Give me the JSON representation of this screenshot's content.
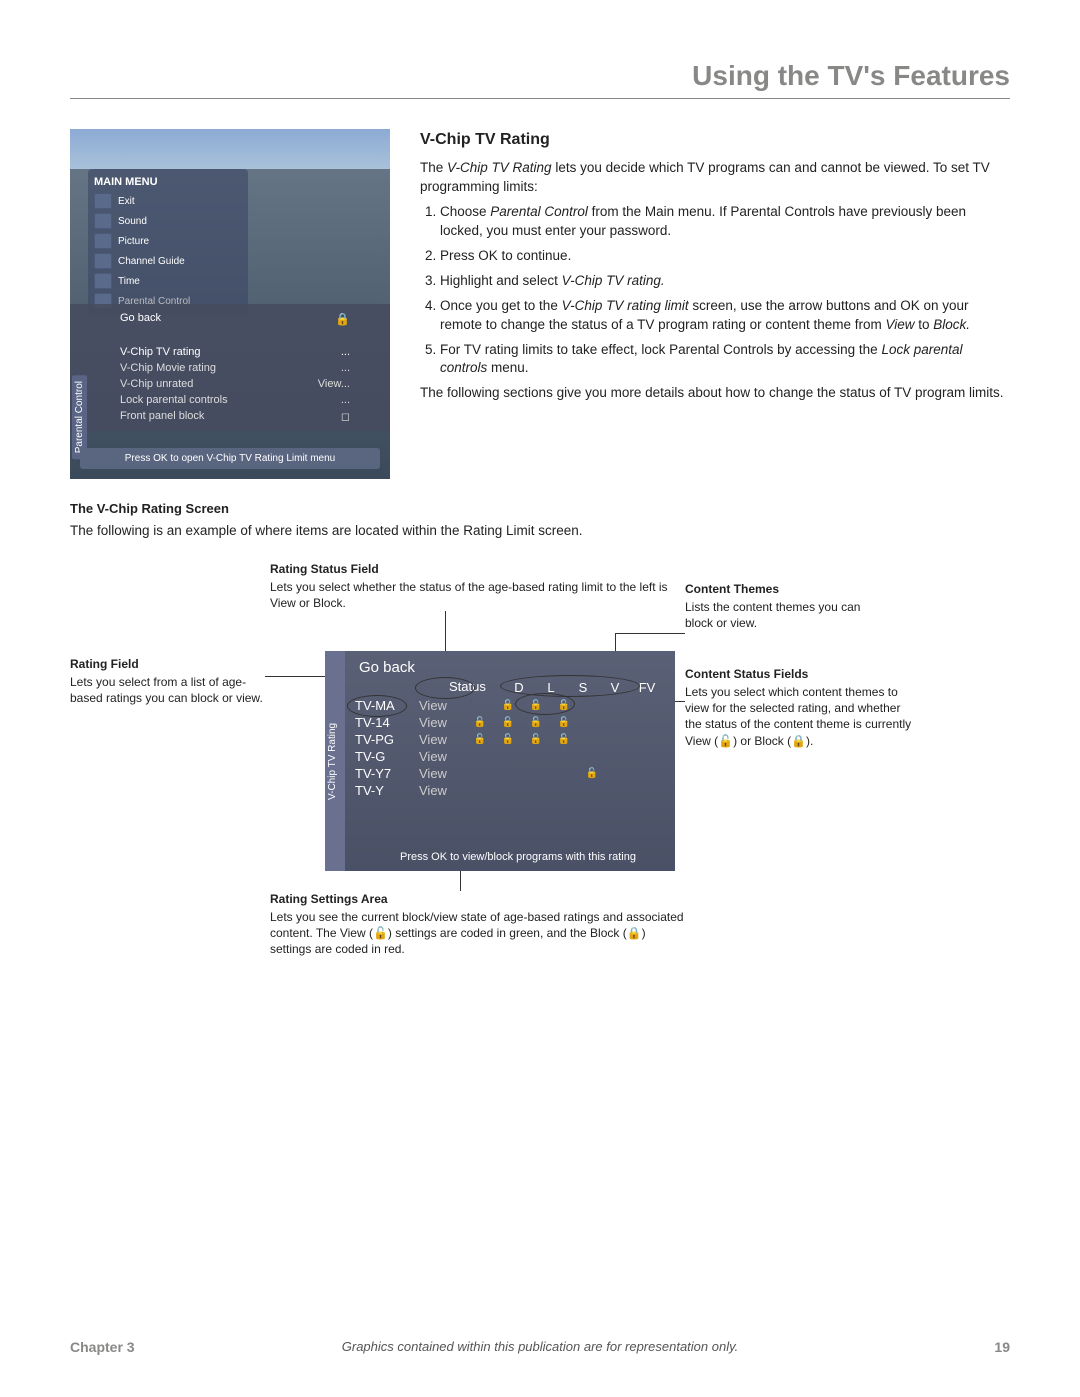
{
  "header": {
    "title": "Using the TV's Features"
  },
  "screenshot1": {
    "menu_title": "MAIN MENU",
    "items": [
      "Exit",
      "Sound",
      "Picture",
      "Channel Guide",
      "Time",
      "Parental Control"
    ],
    "submenu": {
      "side_label": "Parental Control",
      "rows": [
        {
          "label": "Go back",
          "val": ""
        },
        {
          "label": "V-Chip TV rating",
          "val": "..."
        },
        {
          "label": "V-Chip Movie rating",
          "val": "..."
        },
        {
          "label": "V-Chip unrated",
          "val": "View..."
        },
        {
          "label": "Lock parental controls",
          "val": "..."
        },
        {
          "label": "Front panel block",
          "val": "◻"
        }
      ],
      "footer": "Press OK to open V-Chip TV Rating Limit menu"
    }
  },
  "content": {
    "section_title": "V-Chip TV Rating",
    "intro1a": "The ",
    "intro1_i": "V-Chip TV Rating",
    "intro1b": " lets you decide which TV programs can and cannot be viewed. To set TV programming limits:",
    "step1a": "Choose ",
    "step1_i": "Parental Control",
    "step1b": " from the Main menu. If Parental Controls have previously been locked, you must enter your password.",
    "step2": "Press OK to continue.",
    "step3a": "Highlight and select ",
    "step3_i": "V-Chip TV rating.",
    "step4a": "Once you get to the ",
    "step4_i": "V-Chip TV rating limit",
    "step4b": " screen, use the arrow buttons and OK on your remote to change the status of a TV program rating or content theme from ",
    "step4_i2": "View",
    "step4c": " to ",
    "step4_i3": "Block.",
    "step5a": "For TV rating limits to take effect, lock Parental Controls by accessing the ",
    "step5_i": "Lock parental controls",
    "step5b": " menu.",
    "outro": "The following sections give you more details about how to change the status of TV program limits."
  },
  "vchip_screen": {
    "heading": "The V-Chip Rating Screen",
    "intro": "The following is an example of where items are located within the Rating Limit screen."
  },
  "callouts": {
    "rating_status_field": {
      "title": "Rating Status Field",
      "text": "Lets you select whether the status of the age-based rating limit to the left is View or Block."
    },
    "content_themes": {
      "title": "Content Themes",
      "text": "Lists the content themes you can block or view."
    },
    "rating_field": {
      "title": "Rating Field",
      "text": "Lets you select from a list of age-based ratings you can block or view."
    },
    "content_status_fields": {
      "title": "Content Status Fields",
      "text": "Lets you select which content themes to view for the selected rating, and whether the status of the content theme is currently View (🔓) or Block (🔒)."
    },
    "rating_settings_area": {
      "title": "Rating Settings Area",
      "text": "Lets you see the current block/view state of age-based ratings and associated content. The View (🔓) settings are coded in green, and the Block (🔒) settings are coded in red."
    }
  },
  "diagram": {
    "side_label": "V-Chip TV Rating",
    "go_back": "Go back",
    "status_hdr": "Status",
    "theme_headers": [
      "D",
      "L",
      "S",
      "V",
      "FV"
    ],
    "rows": [
      {
        "rating": "TV-MA",
        "status": "View",
        "cells": [
          "",
          "🔓",
          "🔓",
          "🔓",
          ""
        ]
      },
      {
        "rating": "TV-14",
        "status": "View",
        "cells": [
          "🔓",
          "🔓",
          "🔓",
          "🔓",
          ""
        ]
      },
      {
        "rating": "TV-PG",
        "status": "View",
        "cells": [
          "🔓",
          "🔓",
          "🔓",
          "🔓",
          ""
        ]
      },
      {
        "rating": "TV-G",
        "status": "View",
        "cells": [
          "",
          "",
          "",
          "",
          ""
        ]
      },
      {
        "rating": "TV-Y7",
        "status": "View",
        "cells": [
          "",
          "",
          "",
          "",
          "🔓"
        ]
      },
      {
        "rating": "TV-Y",
        "status": "View",
        "cells": [
          "",
          "",
          "",
          "",
          ""
        ]
      }
    ],
    "footer": "Press OK to view/block programs with this rating"
  },
  "footer": {
    "chapter": "Chapter 3",
    "caption": "Graphics contained within this publication are for representation only.",
    "page": "19"
  }
}
